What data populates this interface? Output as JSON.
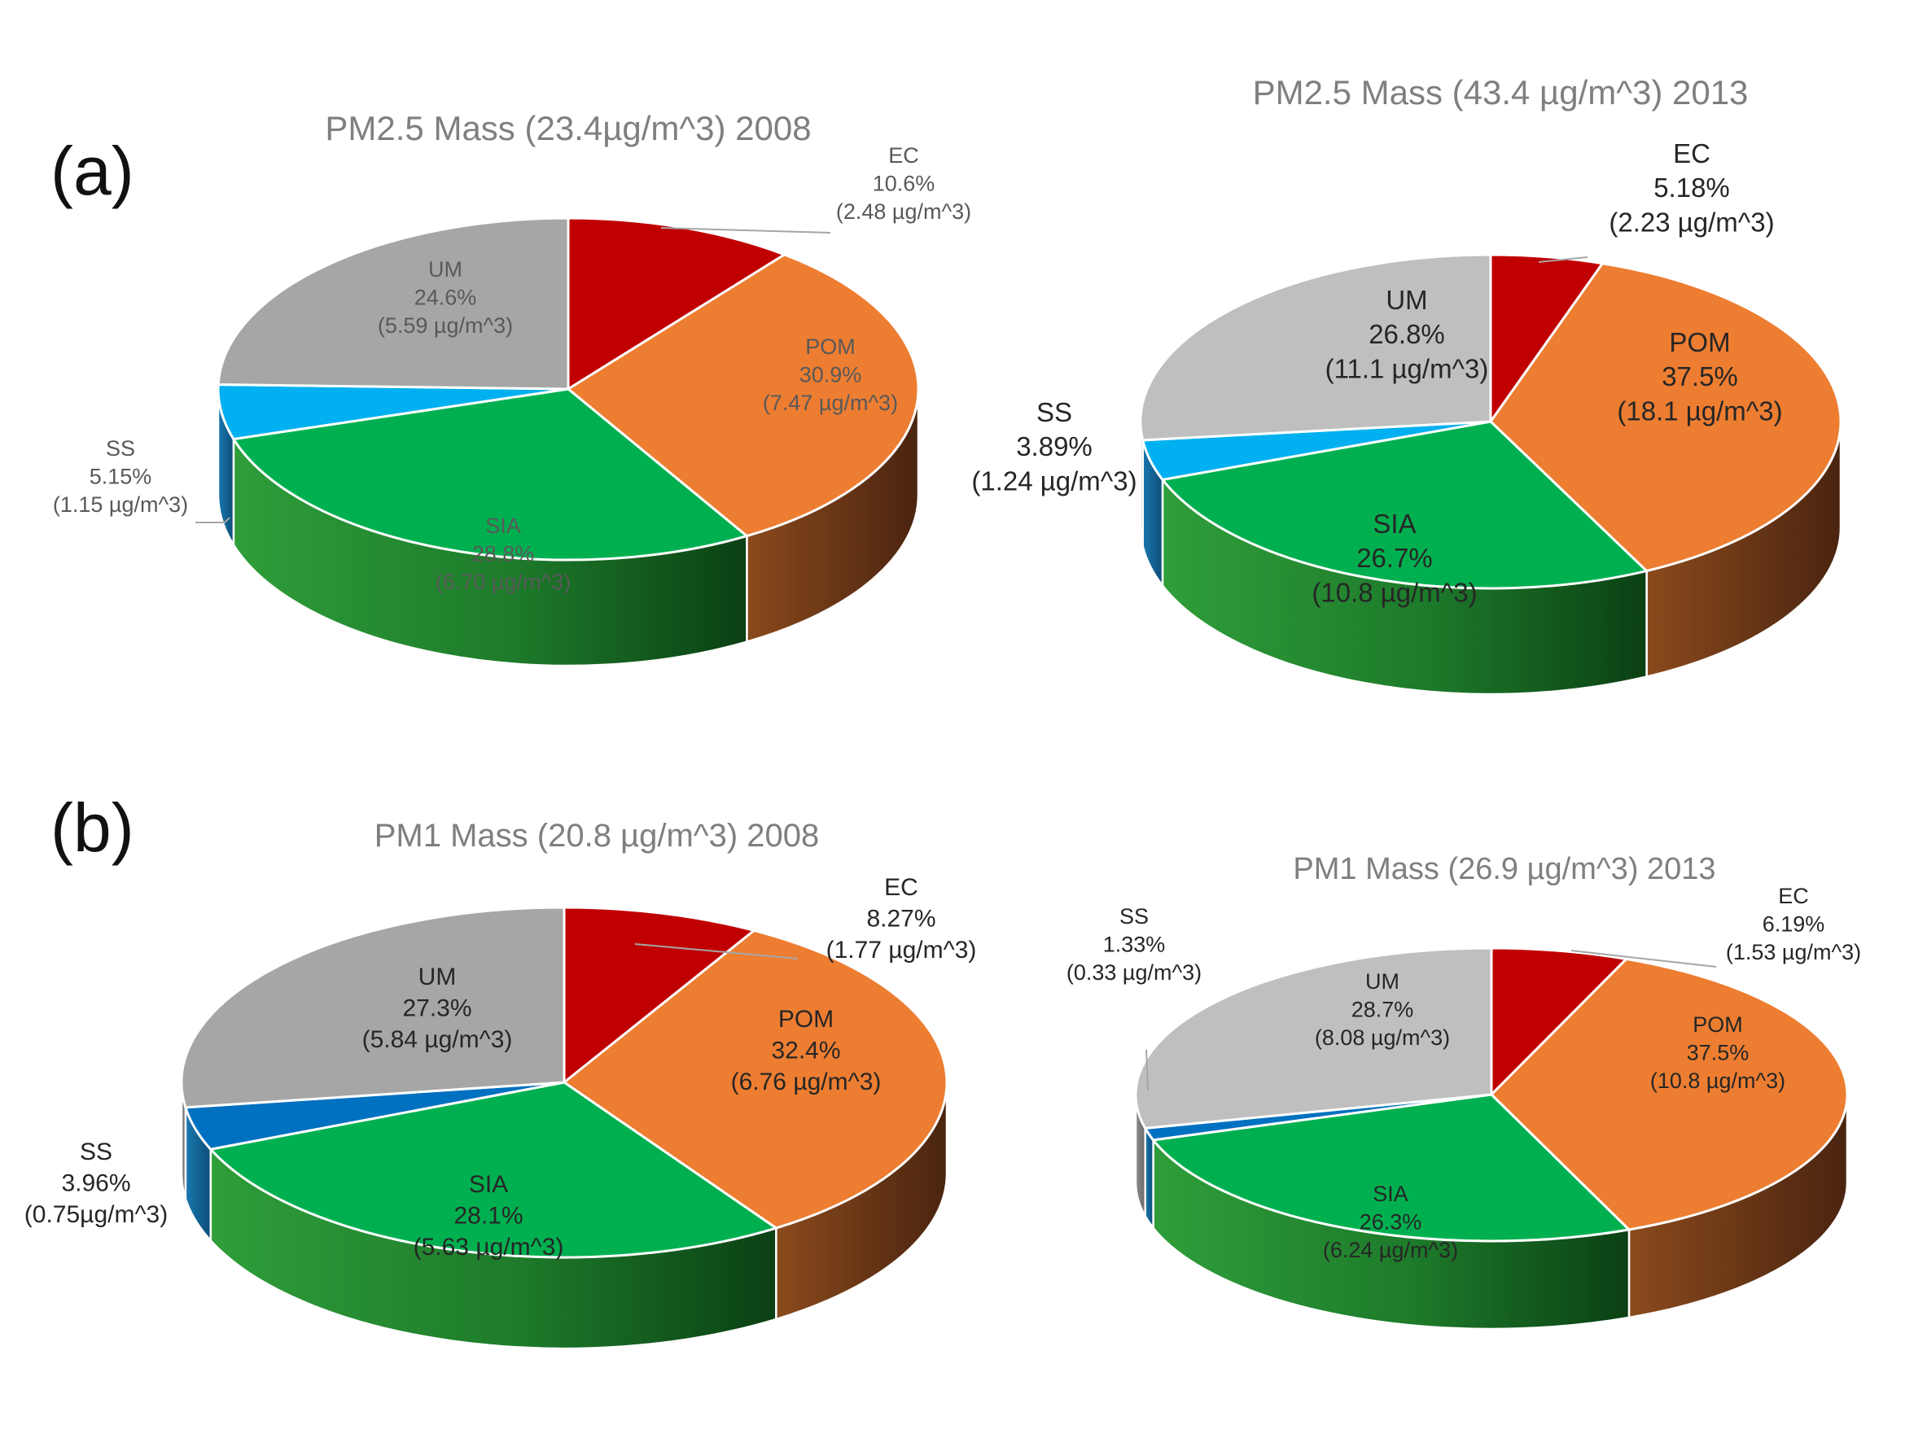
{
  "panels": {
    "a": "(a)",
    "b": "(b)"
  },
  "colors": {
    "EC": "#c00000",
    "POM": "#ed7d31",
    "SIA": "#00b050",
    "SS": "#00b0f0",
    "SS_pm1": "#0070c0",
    "UM": "#a6a6a6",
    "UM_light": "#bfbfbf",
    "title": "#7f7f7f",
    "label_dark": "#262626",
    "label_grey": "#595959",
    "leader": "#a6a6a6"
  },
  "chart_data": [
    {
      "type": "pie",
      "title": "PM2.5 Mass (23.4µg/m^3) 2008",
      "labels": [
        {
          "name": "EC",
          "pct_label": "10.6%",
          "mass_label": "(2.48 µg/m^3)"
        },
        {
          "name": "POM",
          "pct_label": "30.9%",
          "mass_label": "(7.47 µg/m^3)"
        },
        {
          "name": "SIA",
          "pct_label": "28.8%",
          "mass_label": "(6.70 µg/m^3)"
        },
        {
          "name": "SS",
          "pct_label": "5.15%",
          "mass_label": "(1.15 µg/m^3)"
        },
        {
          "name": "UM",
          "pct_label": "24.6%",
          "mass_label": "(5.59 µg/m^3)"
        }
      ],
      "values": [
        10.6,
        30.9,
        28.8,
        5.15,
        24.6
      ]
    },
    {
      "type": "pie",
      "title": "PM2.5 Mass (43.4 µg/m^3) 2013",
      "labels": [
        {
          "name": "EC",
          "pct_label": "5.18%",
          "mass_label": "(2.23 µg/m^3)"
        },
        {
          "name": "POM",
          "pct_label": "37.5%",
          "mass_label": "(18.1 µg/m^3)"
        },
        {
          "name": "SIA",
          "pct_label": "26.7%",
          "mass_label": "(10.8 µg/m^3)"
        },
        {
          "name": "SS",
          "pct_label": "3.89%",
          "mass_label": "(1.24 µg/m^3)"
        },
        {
          "name": "UM",
          "pct_label": "26.8%",
          "mass_label": "(11.1 µg/m^3)"
        }
      ],
      "values": [
        5.18,
        37.5,
        26.7,
        3.89,
        26.8
      ]
    },
    {
      "type": "pie",
      "title": "PM1 Mass  (20.8 µg/m^3) 2008",
      "labels": [
        {
          "name": "EC",
          "pct_label": "8.27%",
          "mass_label": "(1.77 µg/m^3)"
        },
        {
          "name": "POM",
          "pct_label": "32.4%",
          "mass_label": "(6.76 µg/m^3)"
        },
        {
          "name": "SIA",
          "pct_label": "28.1%",
          "mass_label": "(5.63 µg/m^3)"
        },
        {
          "name": "SS",
          "pct_label": "3.96%",
          "mass_label": "(0.75µg/m^3)"
        },
        {
          "name": "UM",
          "pct_label": "27.3%",
          "mass_label": "(5.84 µg/m^3)"
        }
      ],
      "values": [
        8.27,
        32.4,
        28.1,
        3.96,
        27.3
      ]
    },
    {
      "type": "pie",
      "title": "PM1 Mass  (26.9 µg/m^3) 2013",
      "labels": [
        {
          "name": "EC",
          "pct_label": "6.19%",
          "mass_label": "(1.53 µg/m^3)"
        },
        {
          "name": "POM",
          "pct_label": "37.5%",
          "mass_label": "(10.8 µg/m^3)"
        },
        {
          "name": "SIA",
          "pct_label": "26.3%",
          "mass_label": "(6.24 µg/m^3)"
        },
        {
          "name": "SS",
          "pct_label": "1.33%",
          "mass_label": "(0.33 µg/m^3)"
        },
        {
          "name": "UM",
          "pct_label": "28.7%",
          "mass_label": "(8.08 µg/m^3)"
        }
      ],
      "values": [
        6.19,
        37.5,
        26.3,
        1.33,
        28.7
      ]
    }
  ]
}
